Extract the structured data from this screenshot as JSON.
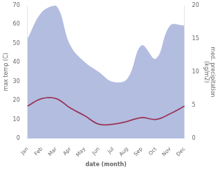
{
  "chart_data": {
    "type": "line",
    "categories": [
      "Jan",
      "Feb",
      "Mar",
      "Apr",
      "May",
      "Jun",
      "Jul",
      "Aug",
      "Sep",
      "Oct",
      "Nov",
      "Dec"
    ],
    "series": [
      {
        "type": "line",
        "color": "#993355",
        "values": [
          17,
          21,
          21,
          16,
          12,
          7.5,
          7.5,
          9,
          11,
          10,
          13,
          17
        ]
      },
      {
        "type": "area",
        "axis": "y2",
        "color": "#b3bde0",
        "values": [
          15,
          19,
          20,
          14,
          11.5,
          10,
          8.5,
          9,
          14,
          12,
          17,
          17
        ]
      }
    ],
    "xlabel": "date (month)",
    "ylabel": "max temp (C)",
    "y2label": "med. precipitation\n(kg/m2)",
    "ylim": [
      0,
      70
    ],
    "yticks": [
      0,
      10,
      20,
      30,
      40,
      50,
      60,
      70
    ],
    "y2lim": [
      0,
      20
    ],
    "y2ticks": [
      0,
      5,
      10,
      15,
      20
    ],
    "grid": false
  }
}
